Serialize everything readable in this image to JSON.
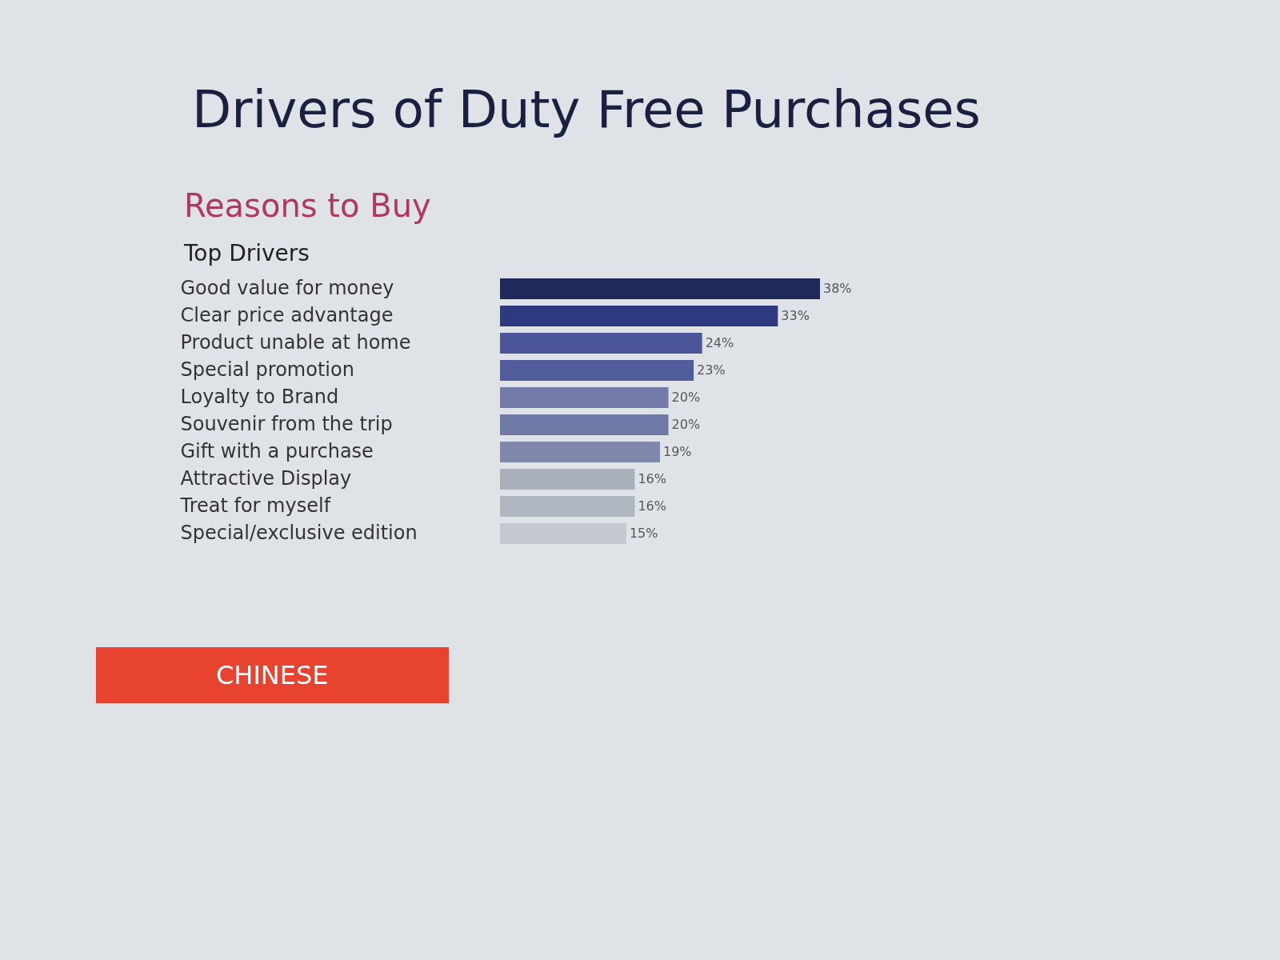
{
  "chart_data": {
    "type": "bar",
    "orientation": "horizontal",
    "title": "Drivers of Duty Free Purchases",
    "subtitle": "Reasons to Buy",
    "annotations": [
      "Top Drivers",
      "CHINESE"
    ],
    "categories": [
      "Good value for money",
      "Clear price advantage",
      "Product unable at home",
      "Special promotion",
      "Loyalty to Brand",
      "Souvenir from the trip",
      "Gift with a purchase",
      "Attractive Display",
      "Treat for myself",
      "Special/exclusive edition"
    ],
    "values": [
      38,
      33,
      24,
      23,
      20,
      20,
      19,
      16,
      16,
      15
    ],
    "value_labels": [
      "38%",
      "33%",
      "24%",
      "23%",
      "20%",
      "20%",
      "19%",
      "16%",
      "16%",
      "15%"
    ],
    "colors": [
      "#1f2a5c",
      "#2e3a80",
      "#4a5699",
      "#515c9c",
      "#737ca8",
      "#6f79a6",
      "#7f87aa",
      "#a9afbb",
      "#b0b6c0",
      "#c4c8cf"
    ],
    "tick_labels": "y"
  }
}
